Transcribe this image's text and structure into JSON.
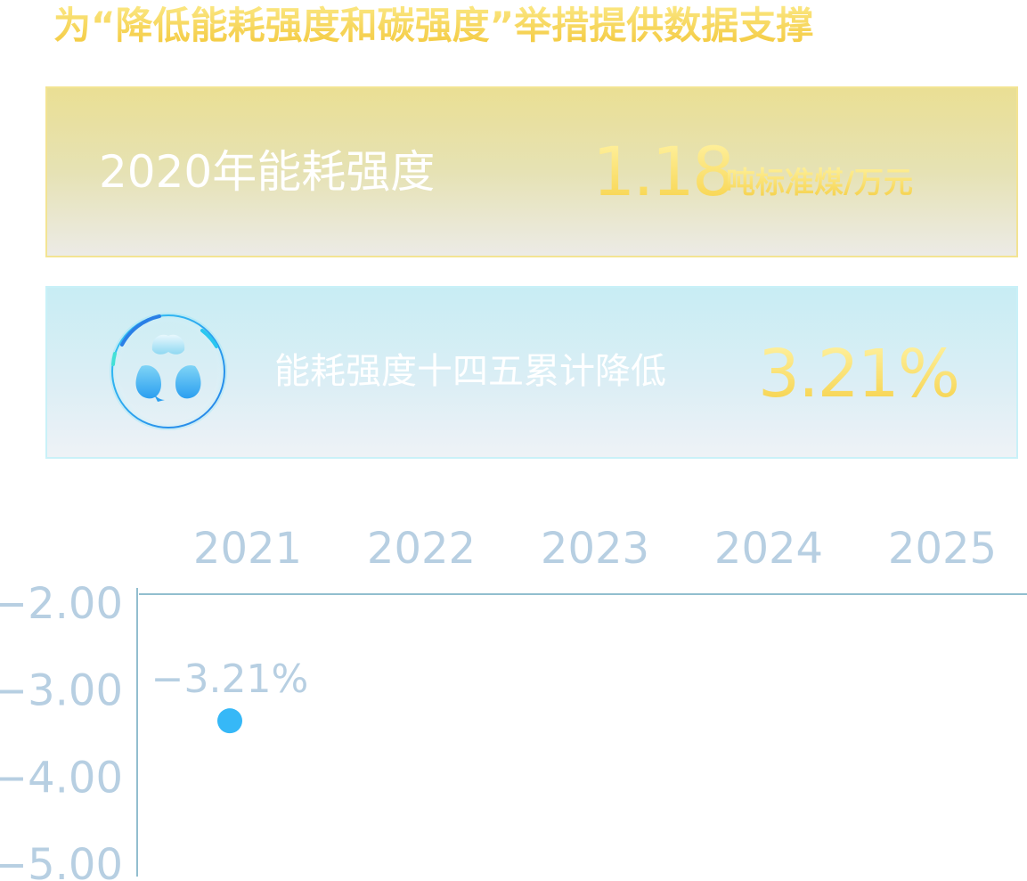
{
  "headline": "为“降低能耗强度和碳强度”举措提供数据支撑",
  "intensity_card": {
    "label": "2020年能耗强度",
    "value": "1.18",
    "unit": "吨标准煤/万元"
  },
  "reduction_card": {
    "icon": "leaf-cluster-icon",
    "label": "能耗强度十四五累计降低",
    "value": "3.21%"
  },
  "colors": {
    "gold": "#f6d34e",
    "cyan_point": "#36b8f7",
    "axis_label": "#b7cfe2",
    "axis_line": "#6ea9bf"
  },
  "chart_data": {
    "type": "scatter",
    "categories": [
      "2021",
      "2022",
      "2023",
      "2024",
      "2025"
    ],
    "y_ticks": [
      "−2.00",
      "−3.00",
      "−4.00",
      "−5.00"
    ],
    "y_tick_values": [
      -2,
      -3,
      -4,
      -5
    ],
    "ylim": [
      -5,
      -2
    ],
    "points": [
      {
        "x": "2021",
        "y": -3.21,
        "label": "−3.21%"
      }
    ],
    "xaxis_position": "top",
    "grid": false,
    "legend": "none"
  }
}
